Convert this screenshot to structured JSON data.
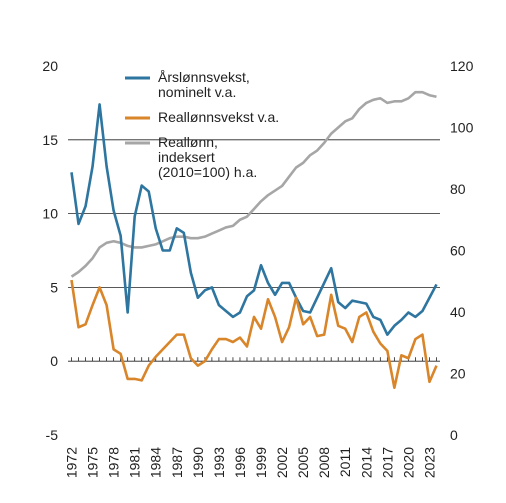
{
  "chart_data": {
    "type": "line",
    "x": [
      1972,
      1973,
      1974,
      1975,
      1976,
      1977,
      1978,
      1979,
      1980,
      1981,
      1982,
      1983,
      1984,
      1985,
      1986,
      1987,
      1988,
      1989,
      1990,
      1991,
      1992,
      1993,
      1994,
      1995,
      1996,
      1997,
      1998,
      1999,
      2000,
      2001,
      2002,
      2003,
      2004,
      2005,
      2006,
      2007,
      2008,
      2009,
      2010,
      2011,
      2012,
      2013,
      2014,
      2015,
      2016,
      2017,
      2018,
      2019,
      2020,
      2021,
      2022,
      2023,
      2024
    ],
    "xlim": [
      1971.5,
      2024.5
    ],
    "xticks": [
      1972,
      1975,
      1978,
      1981,
      1984,
      1987,
      1990,
      1993,
      1996,
      1999,
      2002,
      2005,
      2008,
      2011,
      2014,
      2017,
      2020,
      2023
    ],
    "ylim": [
      -5,
      20
    ],
    "yticks": [
      -5,
      0,
      5,
      10,
      15,
      20
    ],
    "y2lim": [
      0,
      120
    ],
    "y2ticks": [
      0,
      20,
      40,
      60,
      80,
      100,
      120
    ],
    "grid": true,
    "series": [
      {
        "name": "Årslønnsvekst,\nnominelt v.a.",
        "color": "#2e75a0",
        "values": [
          12.8,
          9.3,
          10.5,
          13.2,
          17.4,
          13.2,
          10.2,
          8.5,
          3.3,
          9.8,
          11.9,
          11.5,
          9.0,
          7.5,
          7.5,
          9.0,
          8.7,
          6.0,
          4.3,
          4.8,
          5.0,
          3.8,
          3.4,
          3.0,
          3.3,
          4.4,
          4.8,
          6.5,
          5.3,
          4.5,
          5.3,
          5.3,
          4.3,
          3.4,
          3.3,
          4.3,
          5.3,
          6.3,
          4.0,
          3.6,
          4.1,
          4.0,
          3.9,
          3.0,
          2.8,
          1.8,
          2.4,
          2.8,
          3.3,
          3.0,
          3.4,
          4.3,
          5.2
        ]
      },
      {
        "name": "Reallønnsvekst v.a.",
        "color": "#d9852a",
        "values": [
          5.5,
          2.3,
          2.5,
          3.8,
          5.0,
          3.8,
          0.8,
          0.5,
          -1.2,
          -1.2,
          -1.3,
          -0.3,
          0.3,
          0.8,
          1.3,
          1.8,
          1.8,
          0.2,
          -0.3,
          0.0,
          0.8,
          1.5,
          1.5,
          1.3,
          1.6,
          1.0,
          3.0,
          2.2,
          4.2,
          3.0,
          1.3,
          2.3,
          4.3,
          2.5,
          3.0,
          1.7,
          1.8,
          4.5,
          2.4,
          2.2,
          1.3,
          3.0,
          3.3,
          2.0,
          1.2,
          0.7,
          -1.8,
          0.4,
          0.2,
          1.5,
          1.8,
          -1.4,
          -0.3
        ]
      },
      {
        "name": "Reallønn,\nindeksert\n(2010=100) h.a.",
        "color": "#a6a6a6",
        "axis": "y2",
        "values": [
          51.5,
          53,
          55,
          57.5,
          61,
          62.5,
          63,
          62.5,
          61.5,
          61,
          61,
          61.5,
          62,
          63,
          64,
          64.5,
          64.5,
          64,
          64,
          64.5,
          65.5,
          66.5,
          67.5,
          68,
          70,
          71,
          73.5,
          76,
          78,
          79.5,
          81,
          84,
          87,
          88.5,
          91,
          92.5,
          95,
          98,
          100,
          102,
          103,
          106,
          108,
          109,
          109.5,
          108,
          108.5,
          108.5,
          109.5,
          111.5,
          111.5,
          110.5,
          110
        ]
      }
    ]
  }
}
